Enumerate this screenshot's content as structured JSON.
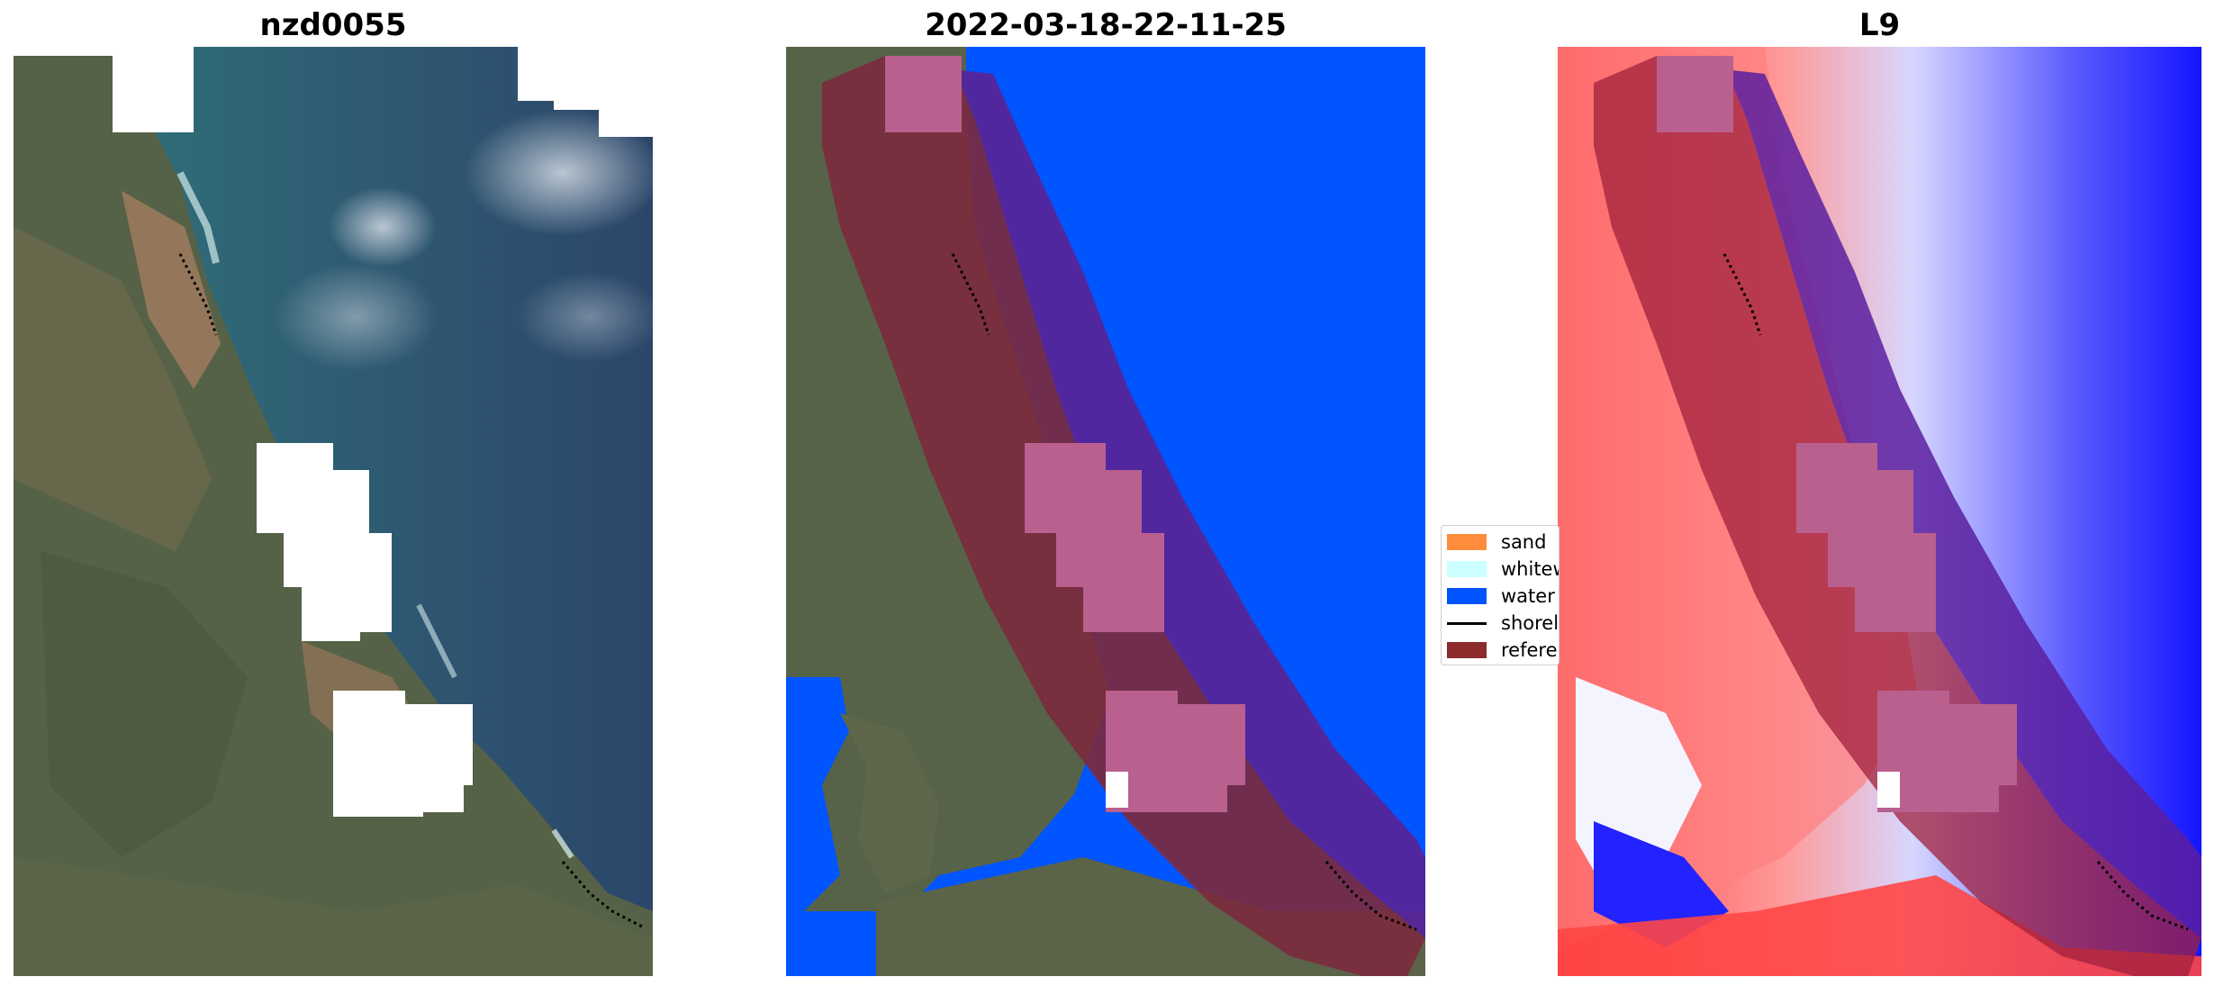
{
  "panels": [
    {
      "id": "rgb",
      "title": "nzd0055"
    },
    {
      "id": "classified",
      "title": "2022-03-18-22-11-25"
    },
    {
      "id": "index",
      "title": "L9"
    }
  ],
  "legend": {
    "items": [
      {
        "label": "sand",
        "color": "#ff8c3c",
        "kind": "patch"
      },
      {
        "label": "whitew",
        "color": "#ccffff",
        "kind": "patch"
      },
      {
        "label": "water",
        "color": "#0055ff",
        "kind": "patch"
      },
      {
        "label": "shorel",
        "color": "#000000",
        "kind": "line"
      },
      {
        "label": "referer",
        "color": "#8b2b2b",
        "kind": "patch"
      }
    ]
  },
  "colors": {
    "land_dark": "#4e5a45",
    "land_mid": "#6a7152",
    "sand_brown": "#9a7a5c",
    "sea_teal": "#2f6e76",
    "sea_deep": "#2d4a6c",
    "water_class": "#0055ff",
    "buffer_maroon": "#7b2a3e",
    "buffer_purple": "#55259a",
    "cloud_mask_pink": "#b9608f",
    "index_red": "#ff2a2a",
    "index_blue": "#1515ff"
  }
}
